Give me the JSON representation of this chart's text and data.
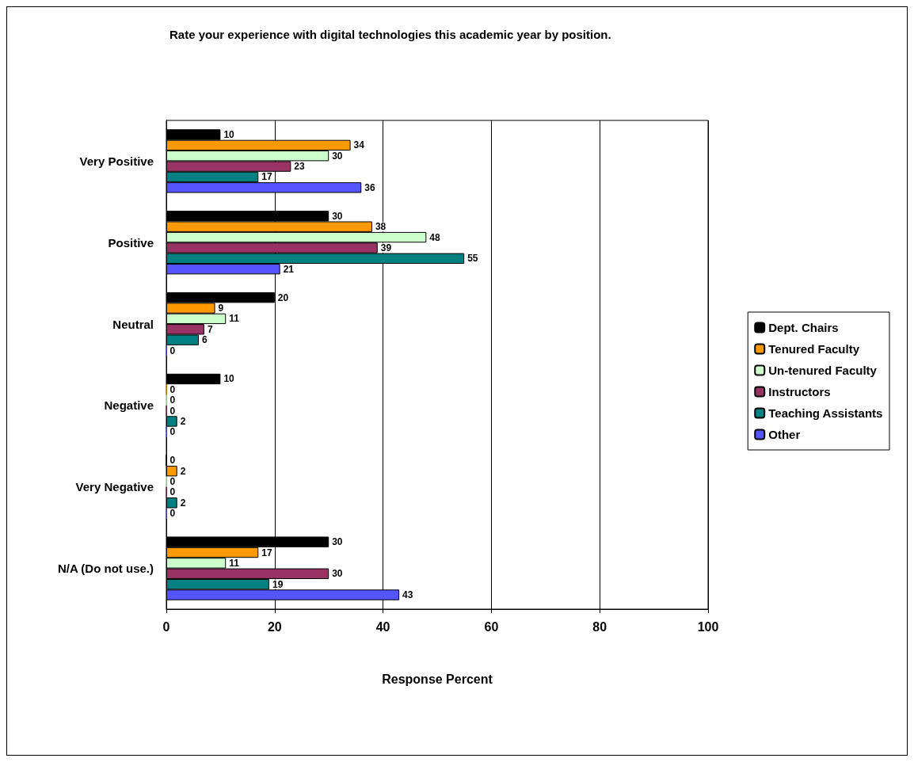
{
  "chart_data": {
    "type": "bar",
    "orientation": "horizontal",
    "title": "Rate your experience with digital technologies this academic year by position.",
    "xlabel": "Response Percent",
    "categories": [
      "Very Positive",
      "Positive",
      "Neutral",
      "Negative",
      "Very Negative",
      "N/A (Do not use.)"
    ],
    "series": [
      {
        "name": "Dept. Chairs",
        "color": "#000000",
        "values": [
          10,
          30,
          20,
          10,
          0,
          30
        ]
      },
      {
        "name": "Tenured Faculty",
        "color": "#ff9900",
        "values": [
          34,
          38,
          9,
          0,
          2,
          17
        ]
      },
      {
        "name": "Un-tenured Faculty",
        "color": "#ccffcc",
        "values": [
          30,
          48,
          11,
          0,
          0,
          11
        ]
      },
      {
        "name": "Instructors",
        "color": "#993366",
        "values": [
          23,
          39,
          7,
          0,
          0,
          30
        ]
      },
      {
        "name": "Teaching Assistants",
        "color": "#008080",
        "values": [
          17,
          55,
          6,
          2,
          2,
          19
        ]
      },
      {
        "name": "Other",
        "color": "#5555ff",
        "values": [
          36,
          21,
          0,
          0,
          0,
          43
        ]
      }
    ],
    "xlim": [
      0,
      100
    ],
    "xticks": [
      0,
      20,
      40,
      60,
      80,
      100
    ],
    "grid": "x",
    "legend": "right",
    "data_labels": true
  }
}
